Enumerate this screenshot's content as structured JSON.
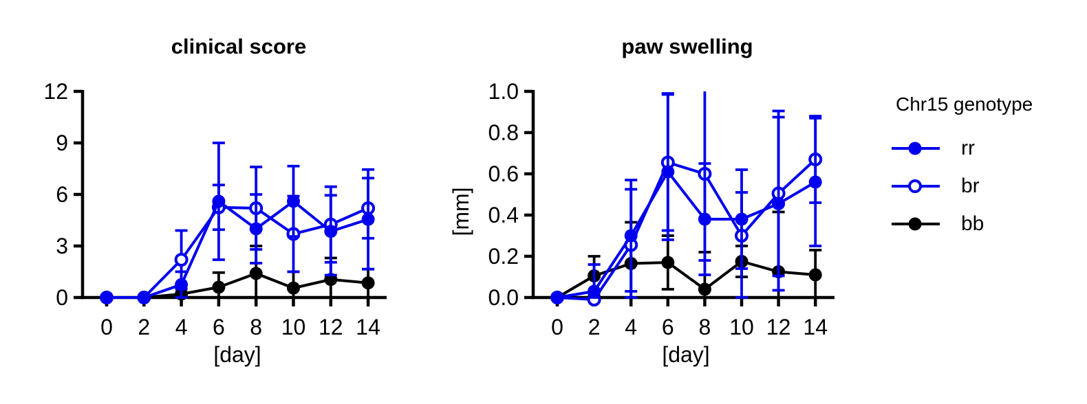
{
  "figure": {
    "background": "#ffffff",
    "accent_blue": "#0000EE",
    "black": "#000000"
  },
  "legend": {
    "title": "Chr15 genotype",
    "items": [
      {
        "label": "rr",
        "color": "#0000EE",
        "marker": "filled"
      },
      {
        "label": "br",
        "color": "#0000EE",
        "marker": "open"
      },
      {
        "label": "bb",
        "color": "#000000",
        "marker": "filled"
      }
    ]
  },
  "chart_data": [
    {
      "type": "line",
      "title": "clinical score",
      "xlabel": "[day]",
      "ylabel": "",
      "x": [
        0,
        2,
        4,
        6,
        8,
        10,
        12,
        14
      ],
      "xlim": [
        0,
        14
      ],
      "ylim": [
        0,
        12
      ],
      "ytick_values": [
        0,
        3,
        6,
        9,
        12
      ],
      "ytick_labels": [
        "0",
        "3",
        "6",
        "9",
        "12"
      ],
      "grid": false,
      "legend_position": "right-of-second-chart",
      "series": [
        {
          "name": "rr",
          "color": "#0000EE",
          "marker": "filled",
          "values": [
            0,
            0,
            0.75,
            5.6,
            4.0,
            5.6,
            3.85,
            4.55
          ],
          "err_up": [
            0,
            0,
            0.75,
            3.4,
            2.0,
            2.05,
            2.1,
            2.9
          ],
          "err_down": [
            0,
            0,
            0.75,
            3.4,
            2.0,
            2.05,
            2.55,
            2.9
          ]
        },
        {
          "name": "br",
          "color": "#0000EE",
          "marker": "open",
          "values": [
            0,
            0,
            2.2,
            5.25,
            5.2,
            3.7,
            4.25,
            5.2
          ],
          "err_up": [
            0,
            0,
            1.7,
            1.3,
            2.4,
            2.2,
            2.2,
            1.75
          ],
          "err_down": [
            0,
            0,
            1.7,
            1.3,
            2.4,
            2.2,
            2.2,
            1.75
          ]
        },
        {
          "name": "bb",
          "color": "#000000",
          "marker": "filled",
          "values": [
            0,
            0,
            0.2,
            0.6,
            1.4,
            0.55,
            1.05,
            0.85
          ],
          "err_up": [
            0,
            0,
            0.3,
            0.85,
            1.6,
            0.95,
            1.25,
            0.8
          ],
          "err_down": [
            0,
            0,
            0.2,
            0.6,
            1.4,
            0.55,
            1.05,
            0.85
          ]
        }
      ]
    },
    {
      "type": "line",
      "title": "paw swelling",
      "xlabel": "[day]",
      "ylabel": "[mm]",
      "x": [
        0,
        2,
        4,
        6,
        8,
        10,
        12,
        14
      ],
      "xlim": [
        0,
        14
      ],
      "ylim": [
        0,
        1.0
      ],
      "ytick_values": [
        0,
        0.2,
        0.4,
        0.6,
        0.8,
        1.0
      ],
      "ytick_labels": [
        "0.0",
        "0.2",
        "0.4",
        "0.6",
        "0.8",
        "1.0"
      ],
      "grid": false,
      "series": [
        {
          "name": "rr",
          "color": "#0000EE",
          "marker": "filled",
          "values": [
            0,
            0.03,
            0.3,
            0.61,
            0.38,
            0.38,
            0.455,
            0.56
          ],
          "err_up": [
            0,
            0.13,
            0.27,
            0.38,
            0.27,
            0.24,
            0.42,
            0.31
          ],
          "err_down": [
            0,
            0.03,
            0.27,
            0.33,
            0.27,
            0.24,
            0.42,
            0.31
          ]
        },
        {
          "name": "br",
          "color": "#0000EE",
          "marker": "open",
          "values": [
            0,
            -0.01,
            0.255,
            0.655,
            0.6,
            0.3,
            0.505,
            0.67
          ],
          "err_up": [
            0,
            0.04,
            0.27,
            0.33,
            0.42,
            0.21,
            0.4,
            0.21
          ],
          "err_down": [
            0,
            0.01,
            0.255,
            0.33,
            0.42,
            0.3,
            0.4,
            0.21
          ]
        },
        {
          "name": "bb",
          "color": "#000000",
          "marker": "filled",
          "values": [
            0,
            0.105,
            0.165,
            0.17,
            0.04,
            0.175,
            0.125,
            0.11
          ],
          "err_up": [
            0,
            0.095,
            0.2,
            0.13,
            0.18,
            0.075,
            0.29,
            0.12
          ],
          "err_down": [
            0,
            0.095,
            0.165,
            0.13,
            0.04,
            0.075,
            0.125,
            0.11
          ]
        }
      ]
    }
  ]
}
